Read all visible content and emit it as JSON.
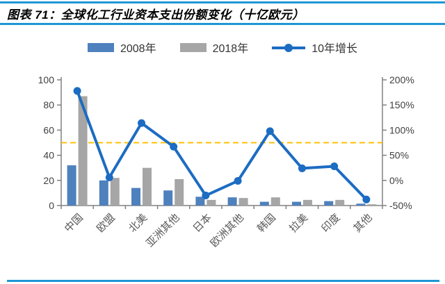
{
  "header": {
    "title": "图表 71：全球化工行业资本支出份额变化（十亿欧元）"
  },
  "legend": [
    {
      "label": "2008年",
      "type": "bar",
      "color": "#4E81BD"
    },
    {
      "label": "2018年",
      "type": "bar",
      "color": "#A6A6A6"
    },
    {
      "label": "10年增长",
      "type": "line",
      "color": "#1C6CC2"
    }
  ],
  "colors": {
    "accent_rule": "#1E96D5",
    "bar_2008": "#4E81BD",
    "bar_2018": "#A6A6A6",
    "growth_line": "#1C6CC2",
    "ref_line": "#FFC000",
    "axis": "#808080",
    "axis_label": "#404040",
    "category_label": "#595959"
  },
  "chart_data": {
    "type": "bar+line combo",
    "title": "全球化工行业资本支出份额变化（十亿欧元）",
    "categories": [
      "中国",
      "欧盟",
      "北美",
      "亚洲其他",
      "日本",
      "欧洲其他",
      "韩国",
      "拉美",
      "印度",
      "其他"
    ],
    "series": [
      {
        "name": "2008年",
        "type": "bar",
        "axis": "left",
        "color": "#4E81BD",
        "values": [
          32,
          20,
          14,
          12,
          7,
          6.5,
          3,
          3,
          3.5,
          1.5
        ]
      },
      {
        "name": "2018年",
        "type": "bar",
        "axis": "left",
        "color": "#A6A6A6",
        "values": [
          87,
          22,
          30,
          21,
          4.5,
          6,
          6.5,
          4.5,
          4.5,
          1
        ]
      },
      {
        "name": "10年增长",
        "type": "line",
        "axis": "right",
        "color": "#1C6CC2",
        "values_pct": [
          178,
          6,
          114,
          67,
          -30,
          -1,
          98,
          24,
          28,
          -38
        ]
      }
    ],
    "left_axis": {
      "min": 0,
      "max": 100,
      "tick_labels": [
        "0",
        "20",
        "40",
        "60",
        "80",
        "100"
      ]
    },
    "right_axis": {
      "min": -50,
      "max": 200,
      "tick_labels": [
        "-50%",
        "0%",
        "50%",
        "100%",
        "150%",
        "200%"
      ]
    },
    "ref_line": {
      "axis": "right",
      "value_pct": 75,
      "style": "dashed",
      "color": "#FFC000"
    },
    "legend_position": "top",
    "grid": false
  }
}
